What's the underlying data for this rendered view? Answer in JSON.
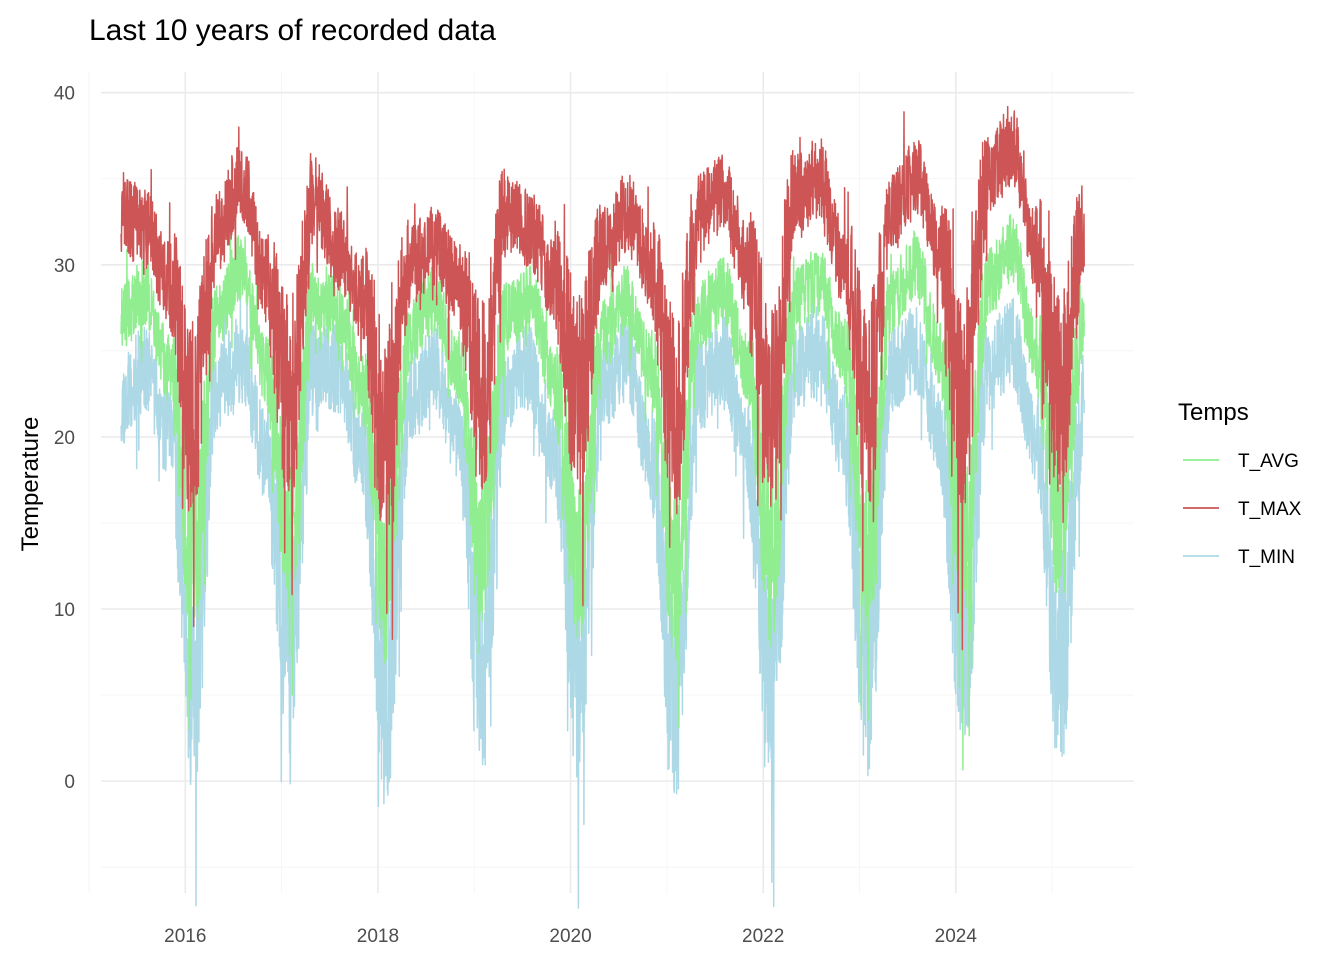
{
  "chart_data": {
    "type": "line",
    "title": "Last 10 years of recorded data",
    "xlabel": "",
    "ylabel": "Temperature",
    "x_start": "2015-05",
    "x_end": "2025-05",
    "xlim": [
      2015.0,
      2025.85
    ],
    "ylim": [
      -6.5,
      41.2
    ],
    "x_ticks": [
      {
        "value": 2016,
        "label": "2016"
      },
      {
        "value": 2018,
        "label": "2018"
      },
      {
        "value": 2020,
        "label": "2020"
      },
      {
        "value": 2022,
        "label": "2022"
      },
      {
        "value": 2024,
        "label": "2024"
      }
    ],
    "y_ticks": [
      {
        "value": 0,
        "label": "0"
      },
      {
        "value": 10,
        "label": "10"
      },
      {
        "value": 20,
        "label": "20"
      },
      {
        "value": 30,
        "label": "30"
      },
      {
        "value": 40,
        "label": "40"
      }
    ],
    "grid": true,
    "legend": {
      "title": "Temps",
      "position": "right"
    },
    "series_profile": {
      "x": [
        "2015-05",
        "2015-08",
        "2015-11",
        "2016-02",
        "2016-05",
        "2016-08",
        "2016-11",
        "2017-02",
        "2017-05",
        "2017-08",
        "2017-11",
        "2018-02",
        "2018-05",
        "2018-08",
        "2018-11",
        "2019-02",
        "2019-05",
        "2019-08",
        "2019-11",
        "2020-02",
        "2020-05",
        "2020-08",
        "2020-11",
        "2021-02",
        "2021-05",
        "2021-08",
        "2021-11",
        "2022-02",
        "2022-05",
        "2022-08",
        "2022-11",
        "2023-02",
        "2023-05",
        "2023-08",
        "2023-11",
        "2024-02",
        "2024-05",
        "2024-08",
        "2024-11",
        "2025-02",
        "2025-05"
      ],
      "note_units": "°"
    },
    "series": [
      {
        "name": "T_AVG",
        "color": "#90ee90",
        "x": [
          "2015-05",
          "2015-08",
          "2015-11",
          "2016-02",
          "2016-05",
          "2016-08",
          "2016-11",
          "2017-02",
          "2017-05",
          "2017-08",
          "2017-11",
          "2018-02",
          "2018-05",
          "2018-08",
          "2018-11",
          "2019-02",
          "2019-05",
          "2019-08",
          "2019-11",
          "2020-02",
          "2020-05",
          "2020-08",
          "2020-11",
          "2021-02",
          "2021-05",
          "2021-08",
          "2021-11",
          "2022-02",
          "2022-05",
          "2022-08",
          "2022-11",
          "2023-02",
          "2023-05",
          "2023-08",
          "2023-11",
          "2024-02",
          "2024-05",
          "2024-08",
          "2024-11",
          "2025-02",
          "2025-05"
        ],
        "values": [
          27,
          28.5,
          24,
          13,
          27,
          30,
          24,
          14,
          28,
          27.5,
          23,
          12,
          26,
          28,
          24,
          14,
          27,
          28,
          23,
          13,
          26,
          28,
          24,
          12,
          27,
          28.5,
          24,
          13,
          28,
          29,
          25,
          13,
          28,
          30,
          25,
          14,
          29,
          31,
          25,
          15,
          27
        ]
      },
      {
        "name": "T_MAX",
        "color": "#cd5555",
        "x": [
          "2015-05",
          "2015-08",
          "2015-11",
          "2016-02",
          "2016-05",
          "2016-08",
          "2016-11",
          "2017-02",
          "2017-05",
          "2017-08",
          "2017-11",
          "2018-02",
          "2018-05",
          "2018-08",
          "2018-11",
          "2019-02",
          "2019-05",
          "2019-08",
          "2019-11",
          "2020-02",
          "2020-05",
          "2020-08",
          "2020-11",
          "2021-02",
          "2021-05",
          "2021-08",
          "2021-11",
          "2022-02",
          "2022-05",
          "2022-08",
          "2022-11",
          "2023-02",
          "2023-05",
          "2023-08",
          "2023-11",
          "2024-02",
          "2024-05",
          "2024-08",
          "2024-11",
          "2025-02",
          "2025-05"
        ],
        "values": [
          33,
          32,
          29,
          21,
          32,
          35,
          29,
          22,
          34,
          31,
          28,
          20,
          30,
          31,
          29,
          22,
          33,
          32,
          29,
          22,
          31,
          33,
          30,
          21,
          33,
          34,
          30,
          22,
          34,
          35,
          30,
          22,
          33,
          35,
          31,
          22,
          35,
          37,
          31,
          22,
          32
        ]
      },
      {
        "name": "T_MIN",
        "color": "#add8e6",
        "x": [
          "2015-05",
          "2015-08",
          "2015-11",
          "2016-02",
          "2016-05",
          "2016-08",
          "2016-11",
          "2017-02",
          "2017-05",
          "2017-08",
          "2017-11",
          "2018-02",
          "2018-05",
          "2018-08",
          "2018-11",
          "2019-02",
          "2019-05",
          "2019-08",
          "2019-11",
          "2020-02",
          "2020-05",
          "2020-08",
          "2020-11",
          "2021-02",
          "2021-05",
          "2021-08",
          "2021-11",
          "2022-02",
          "2022-05",
          "2022-08",
          "2022-11",
          "2023-02",
          "2023-05",
          "2023-08",
          "2023-11",
          "2024-02",
          "2024-05",
          "2024-08",
          "2024-11",
          "2025-02",
          "2025-05"
        ],
        "values": [
          22,
          24,
          20,
          6,
          23,
          24.5,
          19,
          8,
          24,
          24,
          19,
          5,
          22,
          24,
          20,
          7,
          23,
          24,
          19,
          6,
          23,
          24.5,
          19,
          5,
          23,
          24.5,
          19,
          6,
          24,
          25,
          20,
          6,
          24,
          25,
          20,
          7,
          24,
          25.5,
          20,
          7,
          22
        ]
      }
    ]
  }
}
